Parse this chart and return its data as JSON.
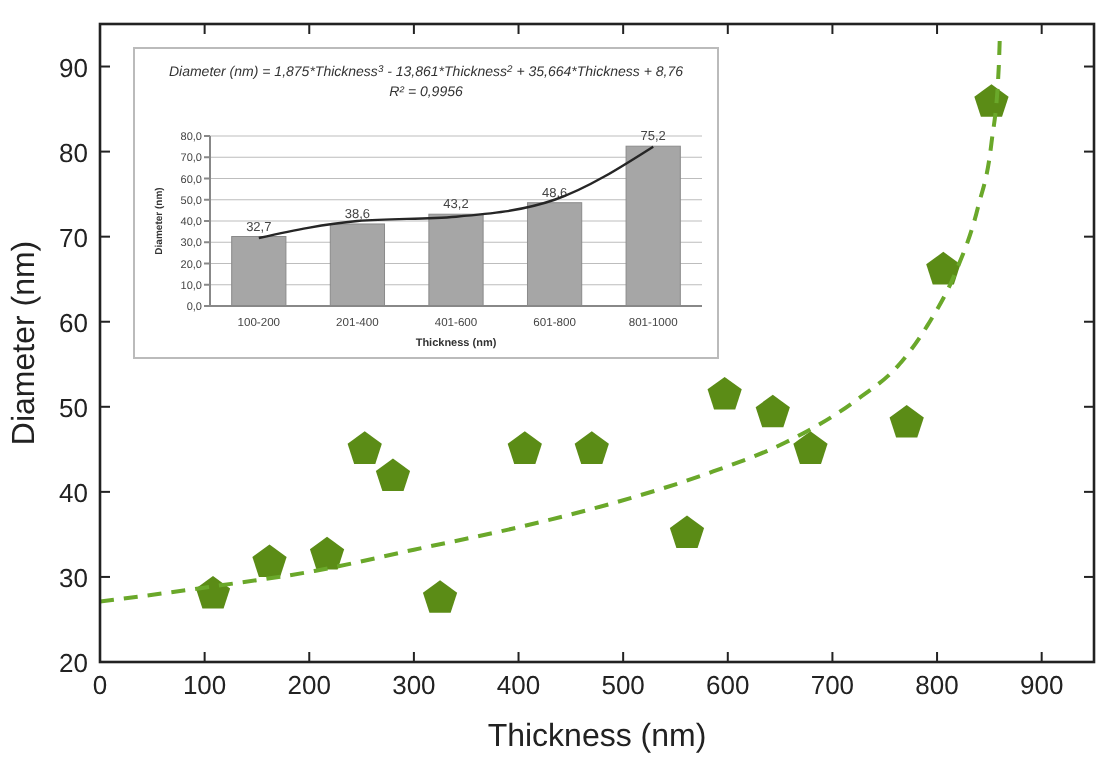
{
  "chart_data": [
    {
      "type": "scatter",
      "xlabel": "Thickness (nm)",
      "ylabel": "Diameter (nm)",
      "xlim": [
        0,
        950
      ],
      "ylim": [
        20,
        95
      ],
      "xticks": [
        0,
        100,
        200,
        300,
        400,
        500,
        600,
        700,
        800,
        900
      ],
      "yticks": [
        20,
        30,
        40,
        50,
        60,
        70,
        80,
        90
      ],
      "grid": false,
      "series": [
        {
          "type": "scatter",
          "color": "#5b8c16",
          "x": [
            108,
            162,
            217,
            253,
            280,
            325,
            406,
            470,
            561,
            597,
            643,
            679,
            771,
            806,
            852
          ],
          "values": [
            28.0,
            31.7,
            32.6,
            45.0,
            41.8,
            27.5,
            45.0,
            45.0,
            35.1,
            51.4,
            49.3,
            45.0,
            48.1,
            66.1,
            85.8
          ]
        },
        {
          "type": "line",
          "color": "#6aa82a",
          "line_style": "dashed",
          "x": [
            0,
            109,
            205,
            300,
            395,
            491,
            586,
            655,
            723,
            764,
            791,
            818,
            839,
            852,
            859,
            860
          ],
          "values": [
            27.1,
            28.9,
            30.7,
            33.2,
            35.7,
            38.7,
            42.4,
            45.8,
            50.8,
            55.0,
            59.6,
            65.9,
            73.4,
            81.0,
            90.0,
            93.5
          ]
        }
      ]
    },
    {
      "type": "bar",
      "title": "Diameter (nm) = 1,875*Thickness$^{3}$ - 13,861*Thickness$^{2}$ + 35,664*Thickness + 8,76",
      "subtitle": "R² = 0,9956",
      "xlabel": "Thickness (nm)",
      "ylabel": "Diameter (nm)",
      "categories": [
        "100-200",
        "201-400",
        "401-600",
        "601-800",
        "801-1000"
      ],
      "ylim": [
        0,
        80
      ],
      "yticks": [
        {
          "value": 0,
          "label": "0,0"
        },
        {
          "value": 10,
          "label": "10,0"
        },
        {
          "value": 20,
          "label": "20,0"
        },
        {
          "value": 30,
          "label": "30,0"
        },
        {
          "value": 40,
          "label": "40,0"
        },
        {
          "value": 50,
          "label": "50,0"
        },
        {
          "value": 60,
          "label": "60,0"
        },
        {
          "value": 70,
          "label": "70,0"
        },
        {
          "value": 80,
          "label": "80,0"
        }
      ],
      "grid": "y",
      "series": [
        {
          "type": "bar",
          "color": "#a6a6a6",
          "values": [
            32.7,
            38.6,
            43.2,
            48.6,
            75.2
          ],
          "value_labels": [
            "32,7",
            "38,6",
            "43,2",
            "48,6",
            "75,2"
          ]
        },
        {
          "type": "line",
          "color": "#262626",
          "values": [
            32,
            40,
            42,
            50,
            75
          ]
        }
      ]
    }
  ]
}
